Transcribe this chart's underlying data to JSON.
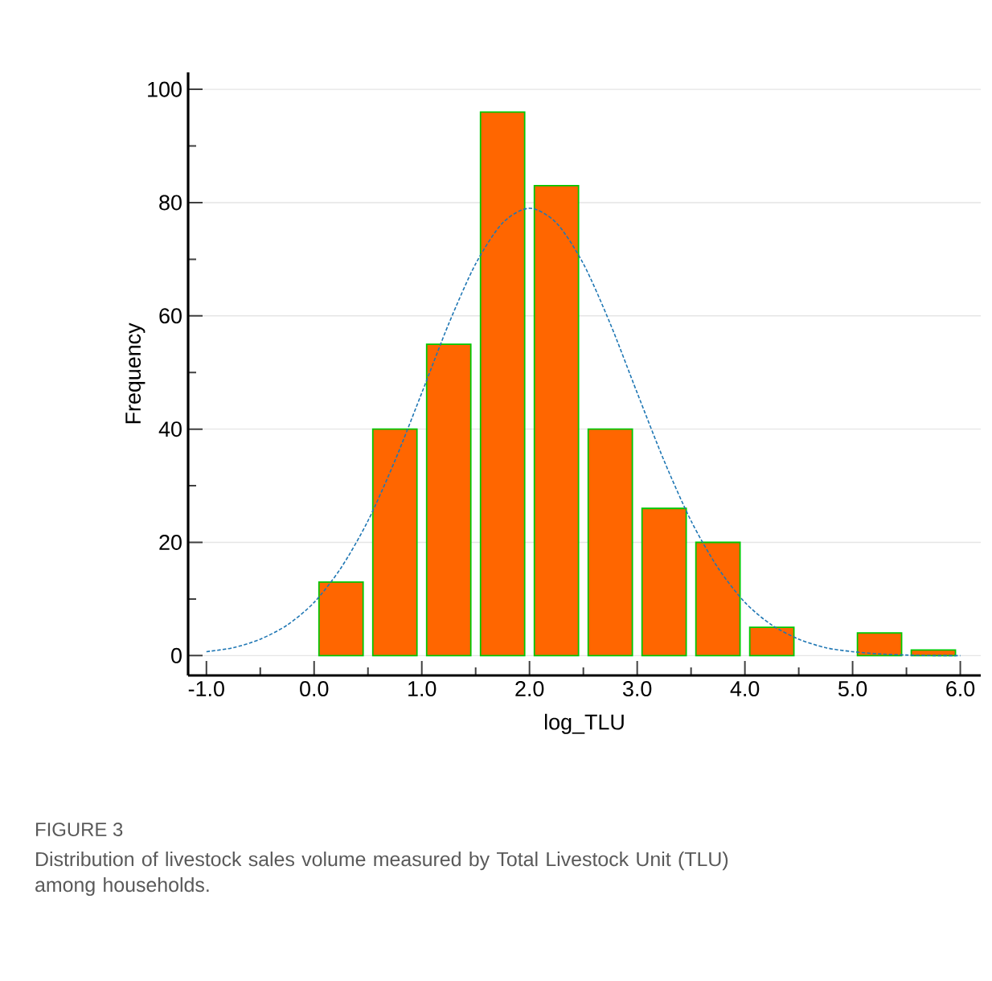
{
  "chart_data": {
    "type": "histogram",
    "xlabel": "log_TLU",
    "ylabel": "Frequency",
    "bins": [
      0.0,
      0.5,
      1.0,
      1.5,
      2.0,
      2.5,
      3.0,
      3.5,
      4.0,
      4.5,
      5.0,
      5.5,
      6.0
    ],
    "values": [
      13,
      40,
      55,
      96,
      83,
      40,
      26,
      20,
      5,
      0,
      4,
      1
    ],
    "color": "#ff6600",
    "series": [
      {
        "type": "line",
        "line_style": "dashed",
        "color": "#1f77b4",
        "x": [
          -1,
          -0.75,
          -0.5,
          -0.25,
          0,
          0.25,
          0.5,
          0.75,
          1,
          1.25,
          1.5,
          1.75,
          2,
          2.25,
          2.5,
          2.75,
          3,
          3.25,
          3.5,
          3.75,
          4,
          4.25,
          4.5,
          4.75,
          5,
          5.25,
          5.5,
          5.75,
          6
        ],
        "values": [
          0.7,
          1.4,
          2.9,
          5.4,
          9.4,
          15.5,
          23.8,
          34.4,
          46.4,
          58.6,
          69.2,
          76.4,
          79,
          76.4,
          69.2,
          58.6,
          46.4,
          34.4,
          23.8,
          15.5,
          9.4,
          5.4,
          2.9,
          1.4,
          0.7,
          0.3,
          0.1,
          0.0,
          0.0
        ]
      }
    ],
    "xlim": [
      -1.17,
      6.19
    ],
    "ylim": [
      -3.5,
      103
    ],
    "xticks": [
      {
        "value": -1,
        "label": "-1.0"
      },
      {
        "value": -0.5,
        "label": null
      },
      {
        "value": 0,
        "label": "0.0"
      },
      {
        "value": 0.5,
        "label": null
      },
      {
        "value": 1,
        "label": "1.0"
      },
      {
        "value": 1.5,
        "label": null
      },
      {
        "value": 2,
        "label": "2.0"
      },
      {
        "value": 2.5,
        "label": null
      },
      {
        "value": 3,
        "label": "3.0"
      },
      {
        "value": 3.5,
        "label": null
      },
      {
        "value": 4,
        "label": "4.0"
      },
      {
        "value": 4.5,
        "label": null
      },
      {
        "value": 5,
        "label": "5.0"
      },
      {
        "value": 5.5,
        "label": null
      },
      {
        "value": 6,
        "label": "6.0"
      }
    ],
    "yticks": [
      0,
      {
        "value": 10,
        "label": null
      },
      20,
      {
        "value": 30,
        "label": null
      },
      40,
      {
        "value": 50,
        "label": null
      },
      60,
      {
        "value": 70,
        "label": null
      },
      80,
      {
        "value": 90,
        "label": null
      },
      100
    ],
    "grid": "y",
    "annotations": [
      "FIGURE 3",
      "Distribution of livestock sales volume measured by Total Livestock Unit (TLU) among households."
    ]
  }
}
